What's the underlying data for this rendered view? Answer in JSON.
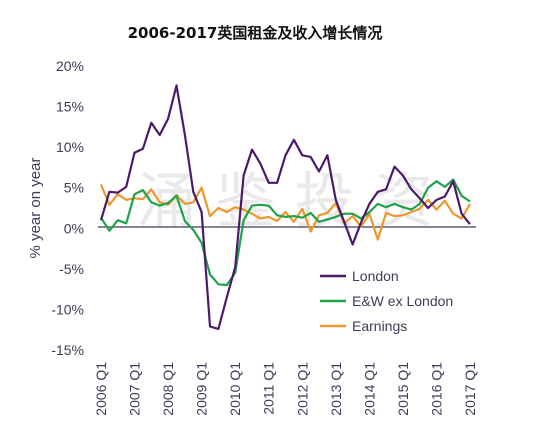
{
  "chart_data": {
    "type": "line",
    "title": "2006-2017英国租金及收入增长情况",
    "ylabel": "% year on year",
    "ylim": [
      -15,
      20
    ],
    "yticks": [
      "20%",
      "15%",
      "10%",
      "5%",
      "0%",
      "-5%",
      "-10%",
      "-15%"
    ],
    "yticks_values": [
      20,
      15,
      10,
      5,
      0,
      -5,
      -10,
      -15
    ],
    "xticks": [
      "2006 Q1",
      "2007 Q1",
      "2008 Q1",
      "2009 Q1",
      "2010 Q1",
      "2011 Q1",
      "2012 Q1",
      "2013 Q1",
      "2014 Q1",
      "2015 Q1",
      "2016 Q1",
      "2017 Q1"
    ],
    "x_start": "2006 Q1",
    "x_end": "2017 Q1",
    "grid": false,
    "legend_position": "bottom-right",
    "watermark": "涌 鉴 投 资",
    "series": [
      {
        "name": "London",
        "color": "#4b1a6b",
        "values": [
          1.0,
          4.5,
          4.4,
          5.1,
          9.3,
          9.8,
          13.0,
          11.5,
          13.5,
          17.6,
          11.5,
          4.5,
          2.0,
          -12.1,
          -12.4,
          -8.5,
          -4.8,
          6.5,
          9.7,
          8.0,
          5.6,
          5.6,
          9.0,
          10.9,
          9.0,
          8.8,
          7.0,
          9.0,
          3.5,
          0.8,
          -2.0,
          0.7,
          3.0,
          4.5,
          4.8,
          7.6,
          6.5,
          4.8,
          3.7,
          2.5,
          3.5,
          3.9,
          5.8,
          1.8,
          0.5
        ]
      },
      {
        "name": "E&W ex London",
        "color": "#1fa34a",
        "values": [
          1.3,
          -0.3,
          1.0,
          0.6,
          4.2,
          4.7,
          3.2,
          2.8,
          3.1,
          4.0,
          0.9,
          -0.2,
          -1.8,
          -5.7,
          -6.9,
          -7.0,
          -5.5,
          1.0,
          2.8,
          2.9,
          2.8,
          1.6,
          1.4,
          1.5,
          1.3,
          1.9,
          0.8,
          1.1,
          1.4,
          1.8,
          1.8,
          1.2,
          2.0,
          3.0,
          2.6,
          3.0,
          2.6,
          2.3,
          3.0,
          5.0,
          5.8,
          5.1,
          6.0,
          4.0,
          3.3
        ]
      },
      {
        "name": "Earnings",
        "color": "#f0962a",
        "values": [
          5.4,
          2.9,
          4.2,
          3.5,
          3.7,
          3.6,
          4.8,
          3.2,
          2.9,
          4.1,
          3.0,
          3.2,
          5.0,
          1.5,
          2.5,
          2.0,
          2.6,
          2.3,
          1.8,
          1.2,
          1.4,
          0.9,
          2.0,
          0.8,
          2.4,
          -0.4,
          1.6,
          1.9,
          3.1,
          0.6,
          1.5,
          0.2,
          1.8,
          -1.4,
          1.9,
          1.5,
          1.6,
          2.0,
          2.4,
          3.5,
          2.3,
          3.4,
          1.8,
          1.2,
          3.0
        ]
      }
    ]
  }
}
